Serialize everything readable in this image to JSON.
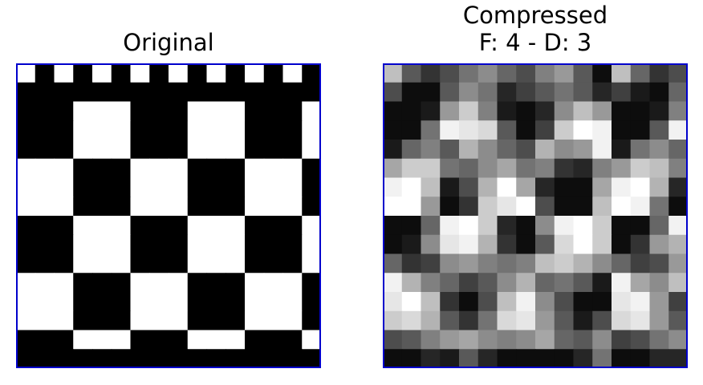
{
  "chart_data": [
    {
      "type": "heatmap",
      "title": "Original",
      "colormap": "gray",
      "value_range": [
        0,
        1
      ],
      "frame_color": "#0000cc",
      "grid": false,
      "rows": 16,
      "cols": 16,
      "values": [
        [
          1,
          0,
          1,
          0,
          1,
          0,
          1,
          0,
          1,
          0,
          1,
          0,
          1,
          0,
          1,
          0
        ],
        [
          0,
          0,
          0,
          0,
          0,
          0,
          0,
          0,
          0,
          0,
          0,
          0,
          0,
          0,
          0,
          0
        ],
        [
          0,
          0,
          0,
          1,
          1,
          1,
          0,
          0,
          0,
          1,
          1,
          1,
          0,
          0,
          0,
          1
        ],
        [
          0,
          0,
          0,
          1,
          1,
          1,
          0,
          0,
          0,
          1,
          1,
          1,
          0,
          0,
          0,
          1
        ],
        [
          0,
          0,
          0,
          1,
          1,
          1,
          0,
          0,
          0,
          1,
          1,
          1,
          0,
          0,
          0,
          1
        ],
        [
          1,
          1,
          1,
          0,
          0,
          0,
          1,
          1,
          1,
          0,
          0,
          0,
          1,
          1,
          1,
          0
        ],
        [
          1,
          1,
          1,
          0,
          0,
          0,
          1,
          1,
          1,
          0,
          0,
          0,
          1,
          1,
          1,
          0
        ],
        [
          1,
          1,
          1,
          0,
          0,
          0,
          1,
          1,
          1,
          0,
          0,
          0,
          1,
          1,
          1,
          0
        ],
        [
          0,
          0,
          0,
          1,
          1,
          1,
          0,
          0,
          0,
          1,
          1,
          1,
          0,
          0,
          0,
          1
        ],
        [
          0,
          0,
          0,
          1,
          1,
          1,
          0,
          0,
          0,
          1,
          1,
          1,
          0,
          0,
          0,
          1
        ],
        [
          0,
          0,
          0,
          1,
          1,
          1,
          0,
          0,
          0,
          1,
          1,
          1,
          0,
          0,
          0,
          1
        ],
        [
          1,
          1,
          1,
          0,
          0,
          0,
          1,
          1,
          1,
          0,
          0,
          0,
          1,
          1,
          1,
          0
        ],
        [
          1,
          1,
          1,
          0,
          0,
          0,
          1,
          1,
          1,
          0,
          0,
          0,
          1,
          1,
          1,
          0
        ],
        [
          1,
          1,
          1,
          0,
          0,
          0,
          1,
          1,
          1,
          0,
          0,
          0,
          1,
          1,
          1,
          0
        ],
        [
          0,
          0,
          0,
          1,
          1,
          1,
          0,
          0,
          0,
          1,
          1,
          1,
          0,
          0,
          0,
          1
        ],
        [
          0,
          0,
          0,
          0,
          0,
          0,
          0,
          0,
          0,
          0,
          0,
          0,
          0,
          0,
          0,
          0
        ]
      ]
    },
    {
      "type": "heatmap",
      "title_lines": [
        "Compressed",
        "F: 4 - D: 3"
      ],
      "colormap": "gray",
      "value_range": [
        0,
        1
      ],
      "frame_color": "#0000cc",
      "grid": false,
      "rows": 16,
      "cols": 16,
      "values": [
        [
          0.75,
          0.35,
          0.2,
          0.3,
          0.45,
          0.55,
          0.4,
          0.3,
          0.5,
          0.6,
          0.35,
          0.05,
          0.75,
          0.4,
          0.2,
          0.3
        ],
        [
          0.3,
          0.05,
          0.05,
          0.35,
          0.55,
          0.45,
          0.15,
          0.25,
          0.35,
          0.45,
          0.35,
          0.15,
          0.25,
          0.1,
          0.05,
          0.4
        ],
        [
          0.05,
          0.05,
          0.1,
          0.6,
          0.8,
          0.5,
          0.1,
          0.05,
          0.15,
          0.55,
          0.75,
          0.6,
          0.05,
          0.05,
          0.1,
          0.5
        ],
        [
          0.05,
          0.05,
          0.45,
          0.95,
          0.9,
          0.85,
          0.35,
          0.05,
          0.25,
          0.8,
          1.0,
          0.95,
          0.05,
          0.05,
          0.35,
          0.95
        ],
        [
          0.1,
          0.4,
          0.5,
          0.35,
          0.7,
          0.55,
          0.4,
          0.3,
          0.7,
          0.55,
          0.6,
          0.95,
          0.1,
          0.45,
          0.55,
          0.4
        ],
        [
          0.65,
          0.8,
          0.8,
          0.45,
          0.4,
          0.55,
          0.65,
          0.45,
          0.5,
          0.2,
          0.15,
          0.5,
          0.6,
          0.8,
          0.75,
          0.5
        ],
        [
          0.95,
          1.0,
          0.75,
          0.1,
          0.3,
          0.7,
          1.0,
          0.65,
          0.15,
          0.05,
          0.05,
          0.65,
          0.95,
          1.0,
          0.7,
          0.15
        ],
        [
          1.0,
          1.0,
          0.6,
          0.05,
          0.2,
          0.8,
          0.9,
          1.0,
          0.3,
          0.05,
          0.05,
          0.75,
          1.0,
          0.95,
          0.45,
          0.05
        ],
        [
          0.05,
          0.05,
          0.4,
          0.95,
          1.0,
          0.8,
          0.15,
          0.05,
          0.55,
          0.95,
          1.0,
          0.8,
          0.05,
          0.05,
          0.4,
          0.95
        ],
        [
          0.05,
          0.1,
          0.55,
          0.9,
          0.95,
          0.7,
          0.2,
          0.05,
          0.35,
          0.85,
          1.0,
          0.8,
          0.05,
          0.2,
          0.6,
          0.7
        ],
        [
          0.4,
          0.2,
          0.25,
          0.55,
          0.6,
          0.5,
          0.45,
          0.5,
          0.75,
          0.8,
          0.7,
          0.55,
          0.4,
          0.25,
          0.3,
          0.6
        ],
        [
          0.95,
          0.7,
          0.5,
          0.4,
          0.25,
          0.35,
          0.55,
          0.7,
          0.4,
          0.45,
          0.35,
          0.1,
          0.95,
          0.65,
          0.55,
          0.75
        ],
        [
          0.9,
          1.0,
          0.75,
          0.2,
          0.05,
          0.3,
          0.75,
          0.95,
          0.55,
          0.3,
          0.05,
          0.05,
          0.9,
          0.95,
          0.6,
          0.25
        ],
        [
          0.8,
          0.85,
          0.7,
          0.35,
          0.2,
          0.45,
          0.85,
          0.9,
          0.6,
          0.35,
          0.1,
          0.3,
          0.85,
          0.9,
          0.6,
          0.35
        ],
        [
          0.3,
          0.35,
          0.5,
          0.6,
          0.65,
          0.55,
          0.5,
          0.55,
          0.65,
          0.4,
          0.35,
          0.55,
          0.25,
          0.3,
          0.45,
          0.55
        ],
        [
          0.05,
          0.05,
          0.15,
          0.1,
          0.35,
          0.15,
          0.05,
          0.05,
          0.05,
          0.05,
          0.15,
          0.45,
          0.05,
          0.05,
          0.15,
          0.15
        ]
      ]
    }
  ]
}
